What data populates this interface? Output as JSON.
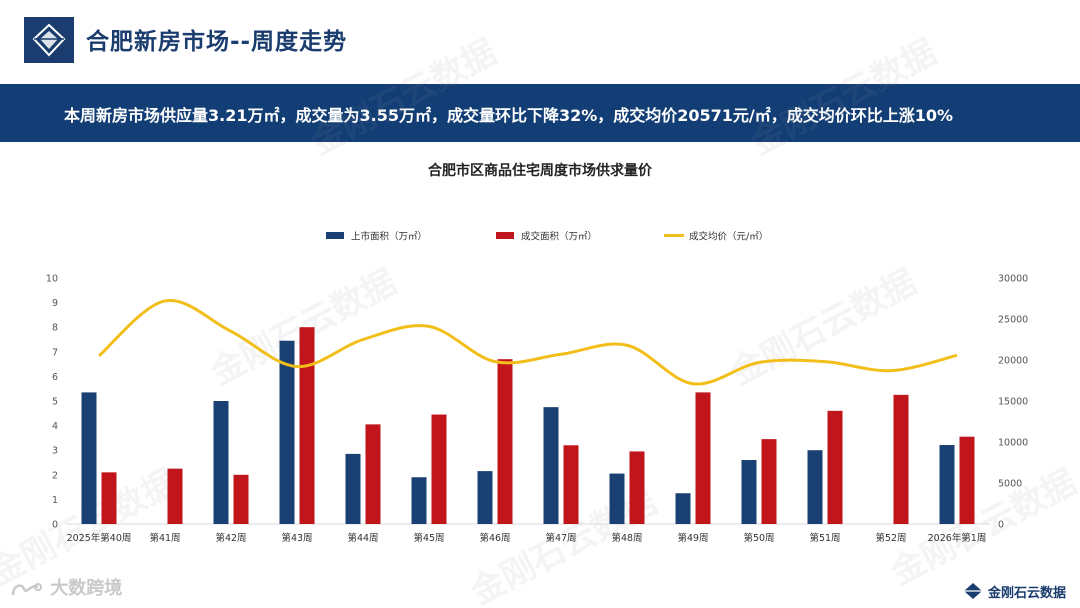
{
  "header": {
    "title": "合肥新房市场--周度走势"
  },
  "banner": {
    "text": "本周新房市场供应量3.21万㎡，成交量为3.55万㎡，成交量环比下降32%，成交均价20571元/㎡，成交均价环比上涨10%"
  },
  "watermark": {
    "text": "金刚石云数据"
  },
  "footer": {
    "left_text": "大数跨境",
    "right_text": "金刚石云数据"
  },
  "colors": {
    "supply": "#1a3f73",
    "deal": "#c0161b",
    "price": "#f2be1a",
    "banner": "#123e75",
    "title": "#1a3c6e"
  },
  "chart_data": {
    "type": "bar",
    "title": "合肥市区商品住宅周度市场供求量价",
    "categories": [
      "2025年第40周",
      "第41周",
      "第42周",
      "第43周",
      "第44周",
      "第45周",
      "第46周",
      "第47周",
      "第48周",
      "第49周",
      "第50周",
      "第51周",
      "第52周",
      "2026年第1周"
    ],
    "series": [
      {
        "name": "上市面积（万㎡）",
        "kind": "bar",
        "axis": "left",
        "color": "#1a3f73",
        "values": [
          5.35,
          null,
          5.0,
          7.45,
          2.85,
          1.9,
          2.15,
          4.75,
          2.05,
          1.25,
          2.6,
          3.0,
          null,
          3.21
        ]
      },
      {
        "name": "成交面积（万㎡）",
        "kind": "bar",
        "axis": "left",
        "color": "#c0161b",
        "values": [
          2.1,
          2.25,
          2.0,
          8.0,
          4.05,
          4.45,
          6.7,
          3.2,
          2.95,
          5.35,
          3.45,
          4.6,
          5.25,
          3.55
        ]
      },
      {
        "name": "成交均价（元/㎡）",
        "kind": "line",
        "axis": "right",
        "color": "#f2be1a",
        "values": [
          20500,
          27200,
          23500,
          19200,
          22500,
          24100,
          19800,
          20700,
          21800,
          17100,
          19700,
          19800,
          18700,
          20571
        ]
      }
    ],
    "ylim_left": [
      0,
      10
    ],
    "yticks_left": [
      0,
      1,
      2,
      3,
      4,
      5,
      6,
      7,
      8,
      9,
      10
    ],
    "ylim_right": [
      0,
      30000
    ],
    "yticks_right": [
      0,
      5000,
      10000,
      15000,
      20000,
      25000,
      30000
    ],
    "legend_position": "top",
    "grid": false
  }
}
